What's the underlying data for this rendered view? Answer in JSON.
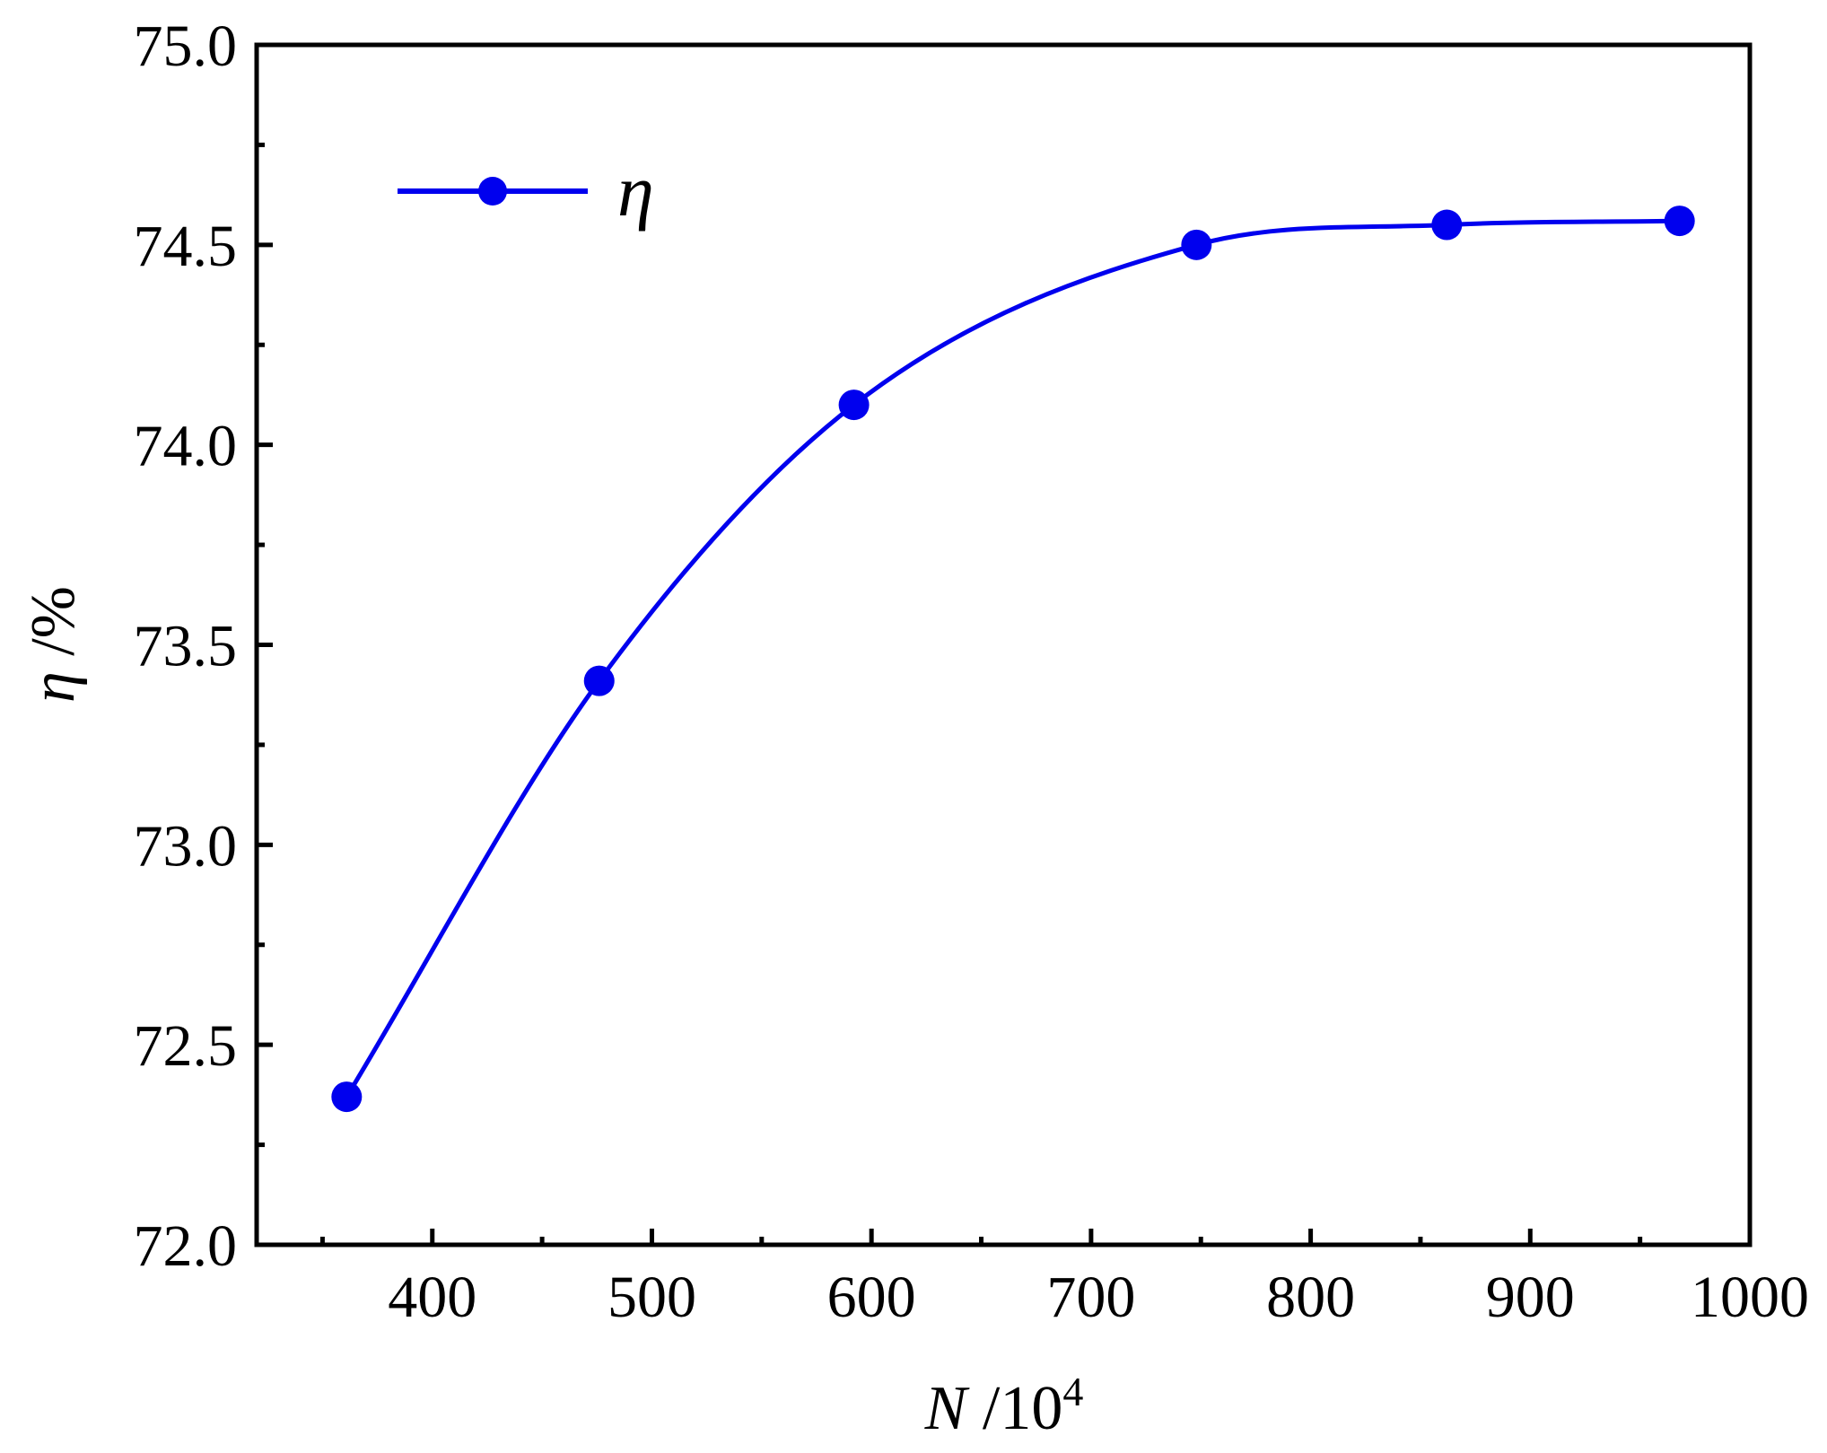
{
  "chart_data": {
    "type": "line",
    "title": "",
    "xlabel_var": "N",
    "xlabel_unit": " /10",
    "xlabel_sup": "4",
    "ylabel_var": "η",
    "ylabel_unit": " /%",
    "xlim": [
      320,
      1000
    ],
    "ylim": [
      72.0,
      75.0
    ],
    "xticks": [
      400,
      500,
      600,
      700,
      800,
      900,
      1000
    ],
    "xtick_labels": [
      "400",
      "500",
      "600",
      "700",
      "800",
      "900",
      "1000"
    ],
    "yticks": [
      72.0,
      72.5,
      73.0,
      73.5,
      74.0,
      74.5,
      75.0
    ],
    "ytick_labels": [
      "72.0",
      "72.5",
      "73.0",
      "73.5",
      "74.0",
      "74.5",
      "75.0"
    ],
    "legend_position": "top-left",
    "grid": false,
    "series": [
      {
        "name": "η",
        "color": "#0000ee",
        "marker": "circle",
        "smooth": true,
        "x": [
          361,
          476,
          592,
          748,
          862,
          968
        ],
        "y": [
          72.37,
          73.41,
          74.1,
          74.5,
          74.55,
          74.56
        ]
      }
    ]
  }
}
